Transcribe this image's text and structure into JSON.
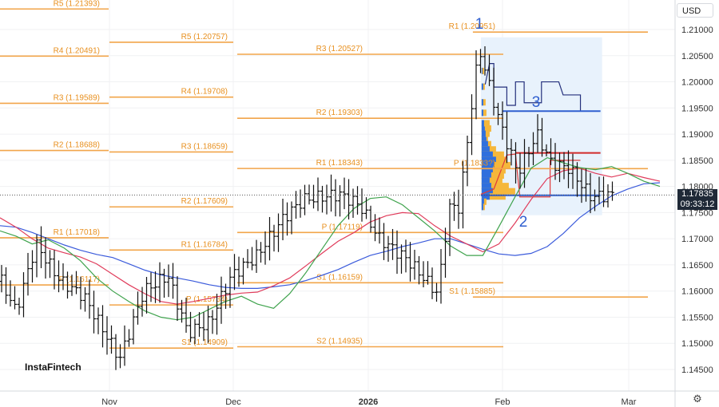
{
  "chart_data": {
    "type": "ohlc",
    "currency": "USD",
    "brand": "InstaFintech",
    "y_axis": {
      "min": 1.14,
      "max": 1.215,
      "ticks": [
        "1.21000",
        "1.20500",
        "1.20000",
        "1.19500",
        "1.19000",
        "1.18500",
        "1.18000",
        "1.17500",
        "1.17000",
        "1.16500",
        "1.16000",
        "1.15500",
        "1.15000",
        "1.14500"
      ]
    },
    "x_axis": {
      "labels": [
        {
          "text": "Nov",
          "date": "2025-11-01",
          "bold": false
        },
        {
          "text": "Dec",
          "date": "2025-12-01",
          "bold": false
        },
        {
          "text": "2026",
          "date": "2026-01-01",
          "bold": true
        },
        {
          "text": "Feb",
          "date": "2026-02-01",
          "bold": false
        },
        {
          "text": "Mar",
          "date": "2026-03-01",
          "bold": false
        }
      ]
    },
    "current_price": "1.17835",
    "countdown": "09:33:12",
    "pivot_levels": [
      {
        "label": "R5 (1.21393)",
        "value": 1.21393,
        "period": "Oct"
      },
      {
        "label": "R4 (1.20491)",
        "value": 1.20491,
        "period": "Oct"
      },
      {
        "label": "R3 (1.19589)",
        "value": 1.19589,
        "period": "Oct"
      },
      {
        "label": "R2 (1.18688)",
        "value": 1.18688,
        "period": "Oct"
      },
      {
        "label": "R1 (1.17018)",
        "value": 1.17018,
        "period": "Oct"
      },
      {
        "label": "P (1.16117)",
        "value": 1.16117,
        "period": "Oct"
      },
      {
        "label": "R5 (1.20757)",
        "value": 1.20757,
        "period": "Nov"
      },
      {
        "label": "R4 (1.19708)",
        "value": 1.19708,
        "period": "Nov"
      },
      {
        "label": "R3 (1.18659)",
        "value": 1.18659,
        "period": "Nov"
      },
      {
        "label": "R2 (1.17609)",
        "value": 1.17609,
        "period": "Nov"
      },
      {
        "label": "R1 (1.16784)",
        "value": 1.16784,
        "period": "Nov"
      },
      {
        "label": "P (1.15734)",
        "value": 1.15734,
        "period": "Nov"
      },
      {
        "label": "S1 (1.14909)",
        "value": 1.14909,
        "period": "Nov"
      },
      {
        "label": "R3 (1.20527)",
        "value": 1.20527,
        "period": "Dec"
      },
      {
        "label": "R2 (1.19303)",
        "value": 1.19303,
        "period": "Dec"
      },
      {
        "label": "R1 (1.18343)",
        "value": 1.18343,
        "period": "Dec"
      },
      {
        "label": "P (1.17119)",
        "value": 1.17119,
        "period": "Dec"
      },
      {
        "label": "S1 (1.16159)",
        "value": 1.16159,
        "period": "Dec"
      },
      {
        "label": "S2 (1.14935)",
        "value": 1.14935,
        "period": "Dec"
      },
      {
        "label": "R1 (1.20951)",
        "value": 1.20951,
        "period": "Jan"
      },
      {
        "label": "P (1.1833?)",
        "value": 1.1834,
        "period": "Jan"
      },
      {
        "label": "S1 (1.15885)",
        "value": 1.15885,
        "period": "Jan"
      }
    ],
    "annotations": [
      "1",
      "2",
      "3"
    ],
    "moving_averages": [
      {
        "color": "#3b5bdb",
        "values": [
          1.1725,
          1.1722,
          1.1712,
          1.17,
          1.1688,
          1.1678,
          1.167,
          1.1664,
          1.1652,
          1.164,
          1.1631,
          1.1625,
          1.1619,
          1.1612,
          1.1607,
          1.1605,
          1.1605,
          1.1608,
          1.1612,
          1.162,
          1.163,
          1.1641,
          1.1655,
          1.1668,
          1.1676,
          1.1685,
          1.1692,
          1.17,
          1.17,
          1.169,
          1.168,
          1.1671,
          1.1668,
          1.1672,
          1.1685,
          1.171,
          1.174,
          1.1762,
          1.1782,
          1.1795,
          1.1805,
          1.1807
        ]
      },
      {
        "color": "#e03c5b",
        "values": [
          1.174,
          1.1722,
          1.17,
          1.1682,
          1.1673,
          1.1665,
          1.1652,
          1.1632,
          1.1612,
          1.1595,
          1.158,
          1.1575,
          1.158,
          1.1586,
          1.1592,
          1.1596,
          1.1598,
          1.161,
          1.1625,
          1.1648,
          1.1672,
          1.1695,
          1.1712,
          1.1732,
          1.1744,
          1.175,
          1.1748,
          1.1725,
          1.1705,
          1.169,
          1.1675,
          1.169,
          1.173,
          1.1775,
          1.1815,
          1.183,
          1.1835,
          1.1825,
          1.1818,
          1.1825,
          1.1817,
          1.181
        ]
      },
      {
        "color": "#3fa34d",
        "values": [
          1.1715,
          1.1705,
          1.169,
          1.1698,
          1.1682,
          1.1658,
          1.1625,
          1.16,
          1.158,
          1.1562,
          1.155,
          1.1545,
          1.155,
          1.1565,
          1.158,
          1.159,
          1.1575,
          1.1567,
          1.1595,
          1.1635,
          1.168,
          1.1725,
          1.1758,
          1.1777,
          1.178,
          1.1765,
          1.174,
          1.1715,
          1.1686,
          1.1668,
          1.1668,
          1.1723,
          1.178,
          1.1835,
          1.1855,
          1.1845,
          1.1836,
          1.1832,
          1.1838,
          1.1825,
          1.181,
          1.18
        ]
      }
    ]
  }
}
